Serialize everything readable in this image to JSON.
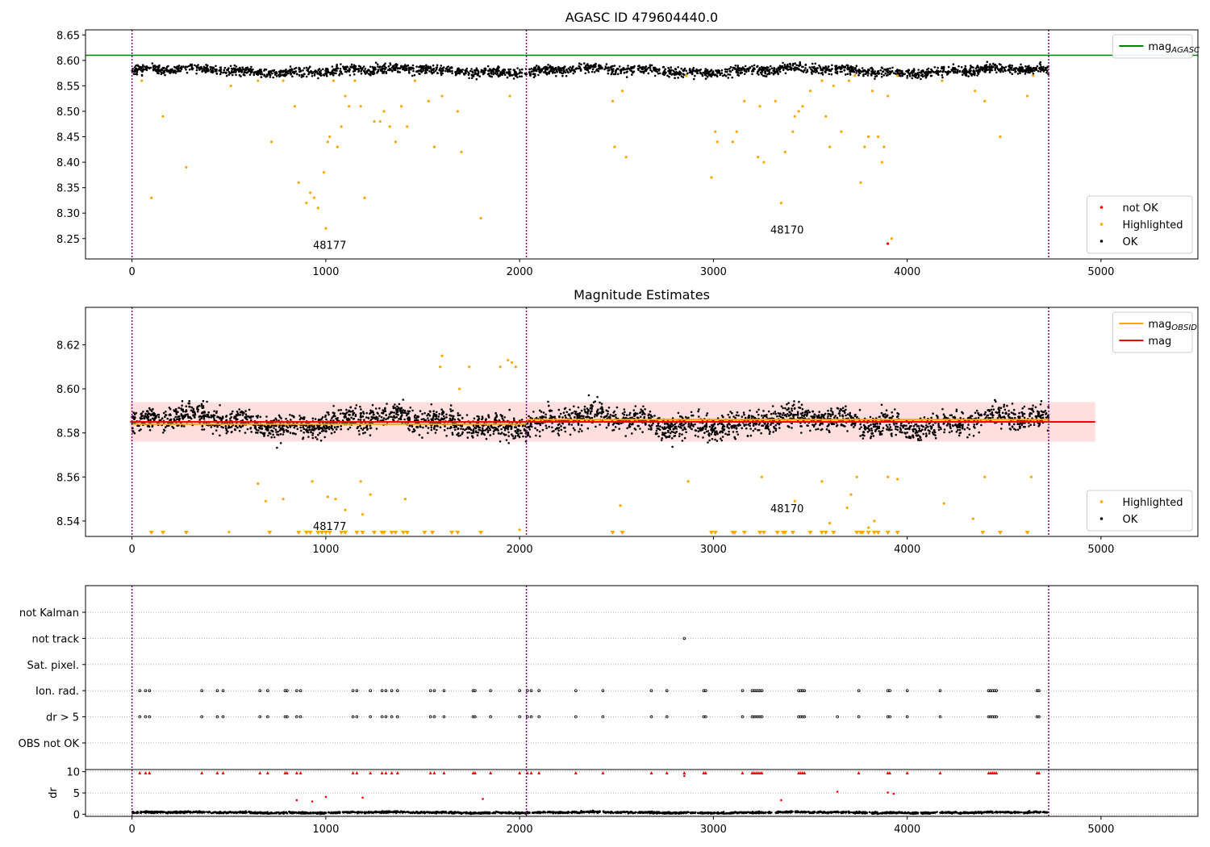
{
  "chart_data": [
    {
      "type": "scatter",
      "title": "AGASC ID 479604440.0",
      "xlabel": "",
      "ylabel": "",
      "xlim": [
        -240,
        5500
      ],
      "ylim": [
        0,
        4.5
      ],
      "x_ticks": [
        0,
        1000,
        2000,
        3000,
        4000,
        5000
      ],
      "y_ticks": [
        {
          "pos": 0.4,
          "label": "8.25"
        },
        {
          "pos": 0.9,
          "label": "8.30"
        },
        {
          "pos": 1.4,
          "label": "8.35"
        },
        {
          "pos": 1.9,
          "label": "8.40"
        },
        {
          "pos": 2.4,
          "label": "8.45"
        },
        {
          "pos": 2.9,
          "label": "8.50"
        },
        {
          "pos": 3.4,
          "label": "8.55"
        },
        {
          "pos": 3.9,
          "label": "8.60"
        },
        {
          "pos": 4.4,
          "label": "8.65"
        }
      ],
      "obsid_boundaries": [
        0,
        2035,
        4730
      ],
      "annotations": [
        {
          "text": "48177",
          "x": 1020,
          "y": 0.2
        },
        {
          "text": "48170",
          "x": 3380,
          "y": 0.5
        }
      ],
      "hline": {
        "name": "mag_AGASC",
        "y": 4.0,
        "x_range": [
          -240,
          5500
        ],
        "color": "#008000"
      },
      "legend": {
        "position": "top-right",
        "entries": [
          {
            "label": "mag",
            "sub": "AGASC",
            "color": "#008000"
          }
        ]
      },
      "legend2": {
        "position": "bottom-right",
        "entries": [
          {
            "label": "not OK",
            "color": "#ff0000"
          },
          {
            "label": "Highlighted",
            "color": "#ffa500"
          },
          {
            "label": "OK",
            "color": "#000000"
          }
        ]
      },
      "band_model": {
        "x_range": [
          0,
          4730
        ],
        "y_center": 3.7,
        "y_spread": 0.12,
        "n": 2400,
        "color": "#000000"
      },
      "series": [
        {
          "name": "Highlighted",
          "color": "#ffa500",
          "points": [
            [
              50,
              3.5
            ],
            [
              100,
              1.2
            ],
            [
              160,
              2.8
            ],
            [
              280,
              1.8
            ],
            [
              510,
              3.4
            ],
            [
              650,
              3.5
            ],
            [
              720,
              2.3
            ],
            [
              780,
              3.5
            ],
            [
              840,
              3.0
            ],
            [
              860,
              1.5
            ],
            [
              900,
              1.1
            ],
            [
              920,
              1.3
            ],
            [
              940,
              1.2
            ],
            [
              960,
              1.0
            ],
            [
              990,
              1.7
            ],
            [
              1000,
              0.6
            ],
            [
              1010,
              2.3
            ],
            [
              1020,
              2.4
            ],
            [
              1040,
              3.5
            ],
            [
              1060,
              2.2
            ],
            [
              1080,
              2.6
            ],
            [
              1100,
              3.2
            ],
            [
              1120,
              3.0
            ],
            [
              1150,
              3.5
            ],
            [
              1180,
              3.0
            ],
            [
              1200,
              1.2
            ],
            [
              1250,
              2.7
            ],
            [
              1280,
              2.7
            ],
            [
              1300,
              2.9
            ],
            [
              1330,
              2.6
            ],
            [
              1360,
              2.3
            ],
            [
              1390,
              3.0
            ],
            [
              1420,
              2.6
            ],
            [
              1460,
              3.5
            ],
            [
              1530,
              3.1
            ],
            [
              1560,
              2.2
            ],
            [
              1600,
              3.2
            ],
            [
              1680,
              2.9
            ],
            [
              1700,
              2.1
            ],
            [
              1800,
              0.8
            ],
            [
              1950,
              3.2
            ],
            [
              2480,
              3.1
            ],
            [
              2490,
              2.2
            ],
            [
              2530,
              3.3
            ],
            [
              2550,
              2.0
            ],
            [
              2860,
              3.6
            ],
            [
              2990,
              1.6
            ],
            [
              3010,
              2.5
            ],
            [
              3020,
              2.3
            ],
            [
              3100,
              2.3
            ],
            [
              3120,
              2.5
            ],
            [
              3160,
              3.1
            ],
            [
              3230,
              2.0
            ],
            [
              3240,
              3.0
            ],
            [
              3260,
              1.9
            ],
            [
              3320,
              3.1
            ],
            [
              3350,
              1.1
            ],
            [
              3370,
              2.1
            ],
            [
              3410,
              2.5
            ],
            [
              3420,
              2.8
            ],
            [
              3440,
              2.9
            ],
            [
              3460,
              3.0
            ],
            [
              3500,
              3.3
            ],
            [
              3560,
              3.5
            ],
            [
              3580,
              2.8
            ],
            [
              3600,
              2.2
            ],
            [
              3620,
              3.4
            ],
            [
              3660,
              2.5
            ],
            [
              3700,
              3.5
            ],
            [
              3730,
              3.6
            ],
            [
              3760,
              1.5
            ],
            [
              3780,
              2.2
            ],
            [
              3800,
              2.4
            ],
            [
              3820,
              3.3
            ],
            [
              3850,
              2.4
            ],
            [
              3870,
              1.9
            ],
            [
              3880,
              2.2
            ],
            [
              3900,
              3.2
            ],
            [
              3920,
              0.4
            ],
            [
              3950,
              3.6
            ],
            [
              4180,
              3.5
            ],
            [
              4350,
              3.3
            ],
            [
              4400,
              3.1
            ],
            [
              4480,
              2.4
            ],
            [
              4620,
              3.2
            ],
            [
              4650,
              3.6
            ]
          ]
        },
        {
          "name": "not OK",
          "color": "#ff0000",
          "points": [
            [
              3900,
              0.3
            ]
          ]
        }
      ]
    },
    {
      "type": "scatter",
      "title": "Magnitude Estimates",
      "xlabel": "",
      "ylabel": "",
      "xlim": [
        -240,
        5500
      ],
      "ylim": [
        8.533,
        8.637
      ],
      "x_ticks": [
        0,
        1000,
        2000,
        3000,
        4000,
        5000
      ],
      "y_ticks": [
        8.54,
        8.56,
        8.58,
        8.6,
        8.62
      ],
      "obsid_boundaries": [
        0,
        2035,
        4730
      ],
      "annotations": [
        {
          "text": "48177",
          "x": 1020,
          "y": 8.536
        },
        {
          "text": "48170",
          "x": 3380,
          "y": 8.544
        }
      ],
      "hline": {
        "name": "mag",
        "y": 8.585,
        "x_range": [
          -10,
          4970
        ],
        "color": "#ff0000"
      },
      "band": {
        "y": [
          8.576,
          8.594
        ],
        "x_range": [
          -10,
          4970
        ],
        "color": "#ffa0a0"
      },
      "obsid_lines": [
        {
          "x_range": [
            0,
            2035
          ],
          "y": 8.584,
          "color": "#ffa500"
        },
        {
          "x_range": [
            2035,
            4730
          ],
          "y": 8.586,
          "color": "#ffa500"
        }
      ],
      "legend": {
        "position": "top-right",
        "entries": [
          {
            "label": "mag",
            "sub": "OBSID",
            "color": "#ffa500"
          },
          {
            "label": "mag",
            "sub": "",
            "color": "#ff0000"
          }
        ]
      },
      "legend2": {
        "position": "bottom-right",
        "entries": [
          {
            "label": "Highlighted",
            "color": "#ffa500"
          },
          {
            "label": "OK",
            "color": "#000000"
          }
        ]
      },
      "band_model": {
        "x_range": [
          0,
          4730
        ],
        "y_center": 8.585,
        "y_spread": 0.007,
        "n": 3000,
        "color": "#000000"
      },
      "series": [
        {
          "name": "Highlighted",
          "color": "#ffa500",
          "points": [
            [
              500,
              8.535
            ],
            [
              650,
              8.557
            ],
            [
              690,
              8.549
            ],
            [
              780,
              8.55
            ],
            [
              930,
              8.558
            ],
            [
              1010,
              8.551
            ],
            [
              1050,
              8.55
            ],
            [
              1100,
              8.545
            ],
            [
              1180,
              8.558
            ],
            [
              1190,
              8.543
            ],
            [
              1230,
              8.552
            ],
            [
              1410,
              8.55
            ],
            [
              1590,
              8.61
            ],
            [
              1600,
              8.615
            ],
            [
              1690,
              8.6
            ],
            [
              1740,
              8.61
            ],
            [
              1900,
              8.61
            ],
            [
              1940,
              8.613
            ],
            [
              1960,
              8.612
            ],
            [
              1980,
              8.61
            ],
            [
              2000,
              8.536
            ],
            [
              2520,
              8.547
            ],
            [
              2870,
              8.558
            ],
            [
              3250,
              8.56
            ],
            [
              3420,
              8.549
            ],
            [
              3560,
              8.558
            ],
            [
              3600,
              8.539
            ],
            [
              3690,
              8.546
            ],
            [
              3710,
              8.552
            ],
            [
              3740,
              8.56
            ],
            [
              3800,
              8.537
            ],
            [
              3830,
              8.54
            ],
            [
              3900,
              8.56
            ],
            [
              3950,
              8.559
            ],
            [
              4190,
              8.548
            ],
            [
              4340,
              8.541
            ],
            [
              4400,
              8.56
            ],
            [
              4640,
              8.56
            ]
          ]
        },
        {
          "name": "Highlighted-clipped",
          "color": "#ffa500",
          "xs": [
            100,
            160,
            280,
            710,
            860,
            900,
            920,
            960,
            980,
            1000,
            1020,
            1080,
            1100,
            1160,
            1190,
            1250,
            1290,
            1300,
            1340,
            1360,
            1400,
            1420,
            1510,
            1550,
            1650,
            1680,
            1800,
            2480,
            2530,
            2990,
            3010,
            3100,
            3110,
            3160,
            3240,
            3260,
            3330,
            3360,
            3370,
            3410,
            3500,
            3560,
            3580,
            3620,
            3740,
            3760,
            3770,
            3800,
            3830,
            3850,
            3900,
            3950,
            4390,
            4480,
            4620
          ]
        }
      ]
    },
    {
      "type": "scatter",
      "title": "",
      "xlabel": "",
      "ylabel": "",
      "xlim": [
        -240,
        5500
      ],
      "obsid_boundaries": [
        0,
        2035,
        4730
      ],
      "categories": [
        "not Kalman",
        "not track",
        "Sat. pixel.",
        "Ion. rad.",
        "dr > 5",
        "OBS not OK"
      ],
      "flag_events": {
        "not track": [
          2850
        ],
        "Ion. rad.": [
          40,
          70,
          90,
          360,
          440,
          470,
          660,
          700,
          790,
          800,
          850,
          870,
          1140,
          1160,
          1230,
          1290,
          1310,
          1340,
          1370,
          1540,
          1560,
          1610,
          1760,
          1770,
          1850,
          2000,
          2040,
          2060,
          2100,
          2290,
          2430,
          2680,
          2760,
          2950,
          2960,
          3150,
          3200,
          3210,
          3220,
          3230,
          3240,
          3250,
          3440,
          3450,
          3460,
          3470,
          3750,
          3900,
          3910,
          4000,
          4170,
          4420,
          4430,
          4440,
          4450,
          4460,
          4670,
          4680
        ],
        "dr > 5": [
          40,
          70,
          90,
          360,
          440,
          470,
          660,
          700,
          790,
          800,
          850,
          870,
          1140,
          1160,
          1230,
          1290,
          1310,
          1340,
          1370,
          1540,
          1560,
          1610,
          1760,
          1770,
          1850,
          2000,
          2040,
          2060,
          2100,
          2290,
          2430,
          2680,
          2760,
          2950,
          2960,
          3150,
          3200,
          3210,
          3220,
          3230,
          3240,
          3250,
          3440,
          3450,
          3460,
          3470,
          3640,
          3750,
          3900,
          3910,
          4000,
          4170,
          4420,
          4430,
          4440,
          4450,
          4460,
          4670,
          4680
        ]
      }
    },
    {
      "type": "scatter",
      "title": "",
      "xlabel": "",
      "ylabel": "dr",
      "xlim": [
        -240,
        5500
      ],
      "ylim": [
        -0.5,
        10.5
      ],
      "x_ticks": [
        0,
        1000,
        2000,
        3000,
        4000,
        5000
      ],
      "y_ticks": [
        0,
        5,
        10
      ],
      "obsid_boundaries": [
        0,
        2035,
        4730
      ],
      "band_model": {
        "x_range": [
          0,
          4730
        ],
        "y_center": 0.4,
        "y_spread": 0.25,
        "n": 2000,
        "color": "#000000"
      },
      "series": [
        {
          "name": "dr-clipped",
          "color": "#ff0000",
          "xs": [
            40,
            70,
            90,
            360,
            440,
            470,
            660,
            700,
            790,
            800,
            850,
            870,
            1140,
            1160,
            1230,
            1290,
            1310,
            1340,
            1370,
            1540,
            1560,
            1610,
            1760,
            1770,
            1850,
            2000,
            2040,
            2060,
            2100,
            2290,
            2430,
            2680,
            2760,
            2850,
            2950,
            2960,
            3150,
            3200,
            3210,
            3220,
            3230,
            3240,
            3250,
            3440,
            3450,
            3460,
            3470,
            3750,
            3900,
            3910,
            4000,
            4170,
            4420,
            4430,
            4440,
            4450,
            4460,
            4670,
            4680
          ]
        },
        {
          "name": "dr-mid",
          "color": "#ff0000",
          "points": [
            [
              850,
              3.3
            ],
            [
              930,
              3.0
            ],
            [
              1000,
              4.1
            ],
            [
              1190,
              3.9
            ],
            [
              1810,
              3.6
            ],
            [
              2850,
              9.0
            ],
            [
              3350,
              3.3
            ],
            [
              3640,
              5.3
            ],
            [
              3900,
              5.1
            ],
            [
              3930,
              4.8
            ]
          ]
        }
      ]
    }
  ]
}
